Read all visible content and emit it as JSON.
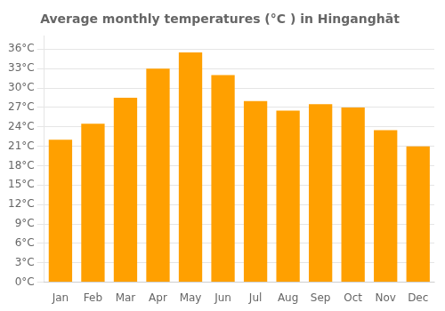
{
  "chart_data": {
    "type": "bar",
    "title": "Average monthly temperatures (°C ) in Hinganghāt",
    "categories": [
      "Jan",
      "Feb",
      "Mar",
      "Apr",
      "May",
      "Jun",
      "Jul",
      "Aug",
      "Sep",
      "Oct",
      "Nov",
      "Dec"
    ],
    "values": [
      22,
      24.5,
      28.5,
      33,
      35.5,
      32,
      28,
      26.5,
      27.5,
      27,
      23.5,
      21
    ],
    "color": "#FFA000",
    "ylim": [
      0,
      38
    ],
    "yticks": [
      {
        "value": 0,
        "label": "0°C"
      },
      {
        "value": 3,
        "label": "3°C"
      },
      {
        "value": 6,
        "label": "6°C"
      },
      {
        "value": 9,
        "label": "9°C"
      },
      {
        "value": 12,
        "label": "12°C"
      },
      {
        "value": 15,
        "label": "15°C"
      },
      {
        "value": 18,
        "label": "18°C"
      },
      {
        "value": 21,
        "label": "21°C"
      },
      {
        "value": 24,
        "label": "24°C"
      },
      {
        "value": 27,
        "label": "27°C"
      },
      {
        "value": 30,
        "label": "30°C"
      },
      {
        "value": 33,
        "label": "33°C"
      },
      {
        "value": 36,
        "label": "36°C"
      }
    ],
    "grid": true
  }
}
